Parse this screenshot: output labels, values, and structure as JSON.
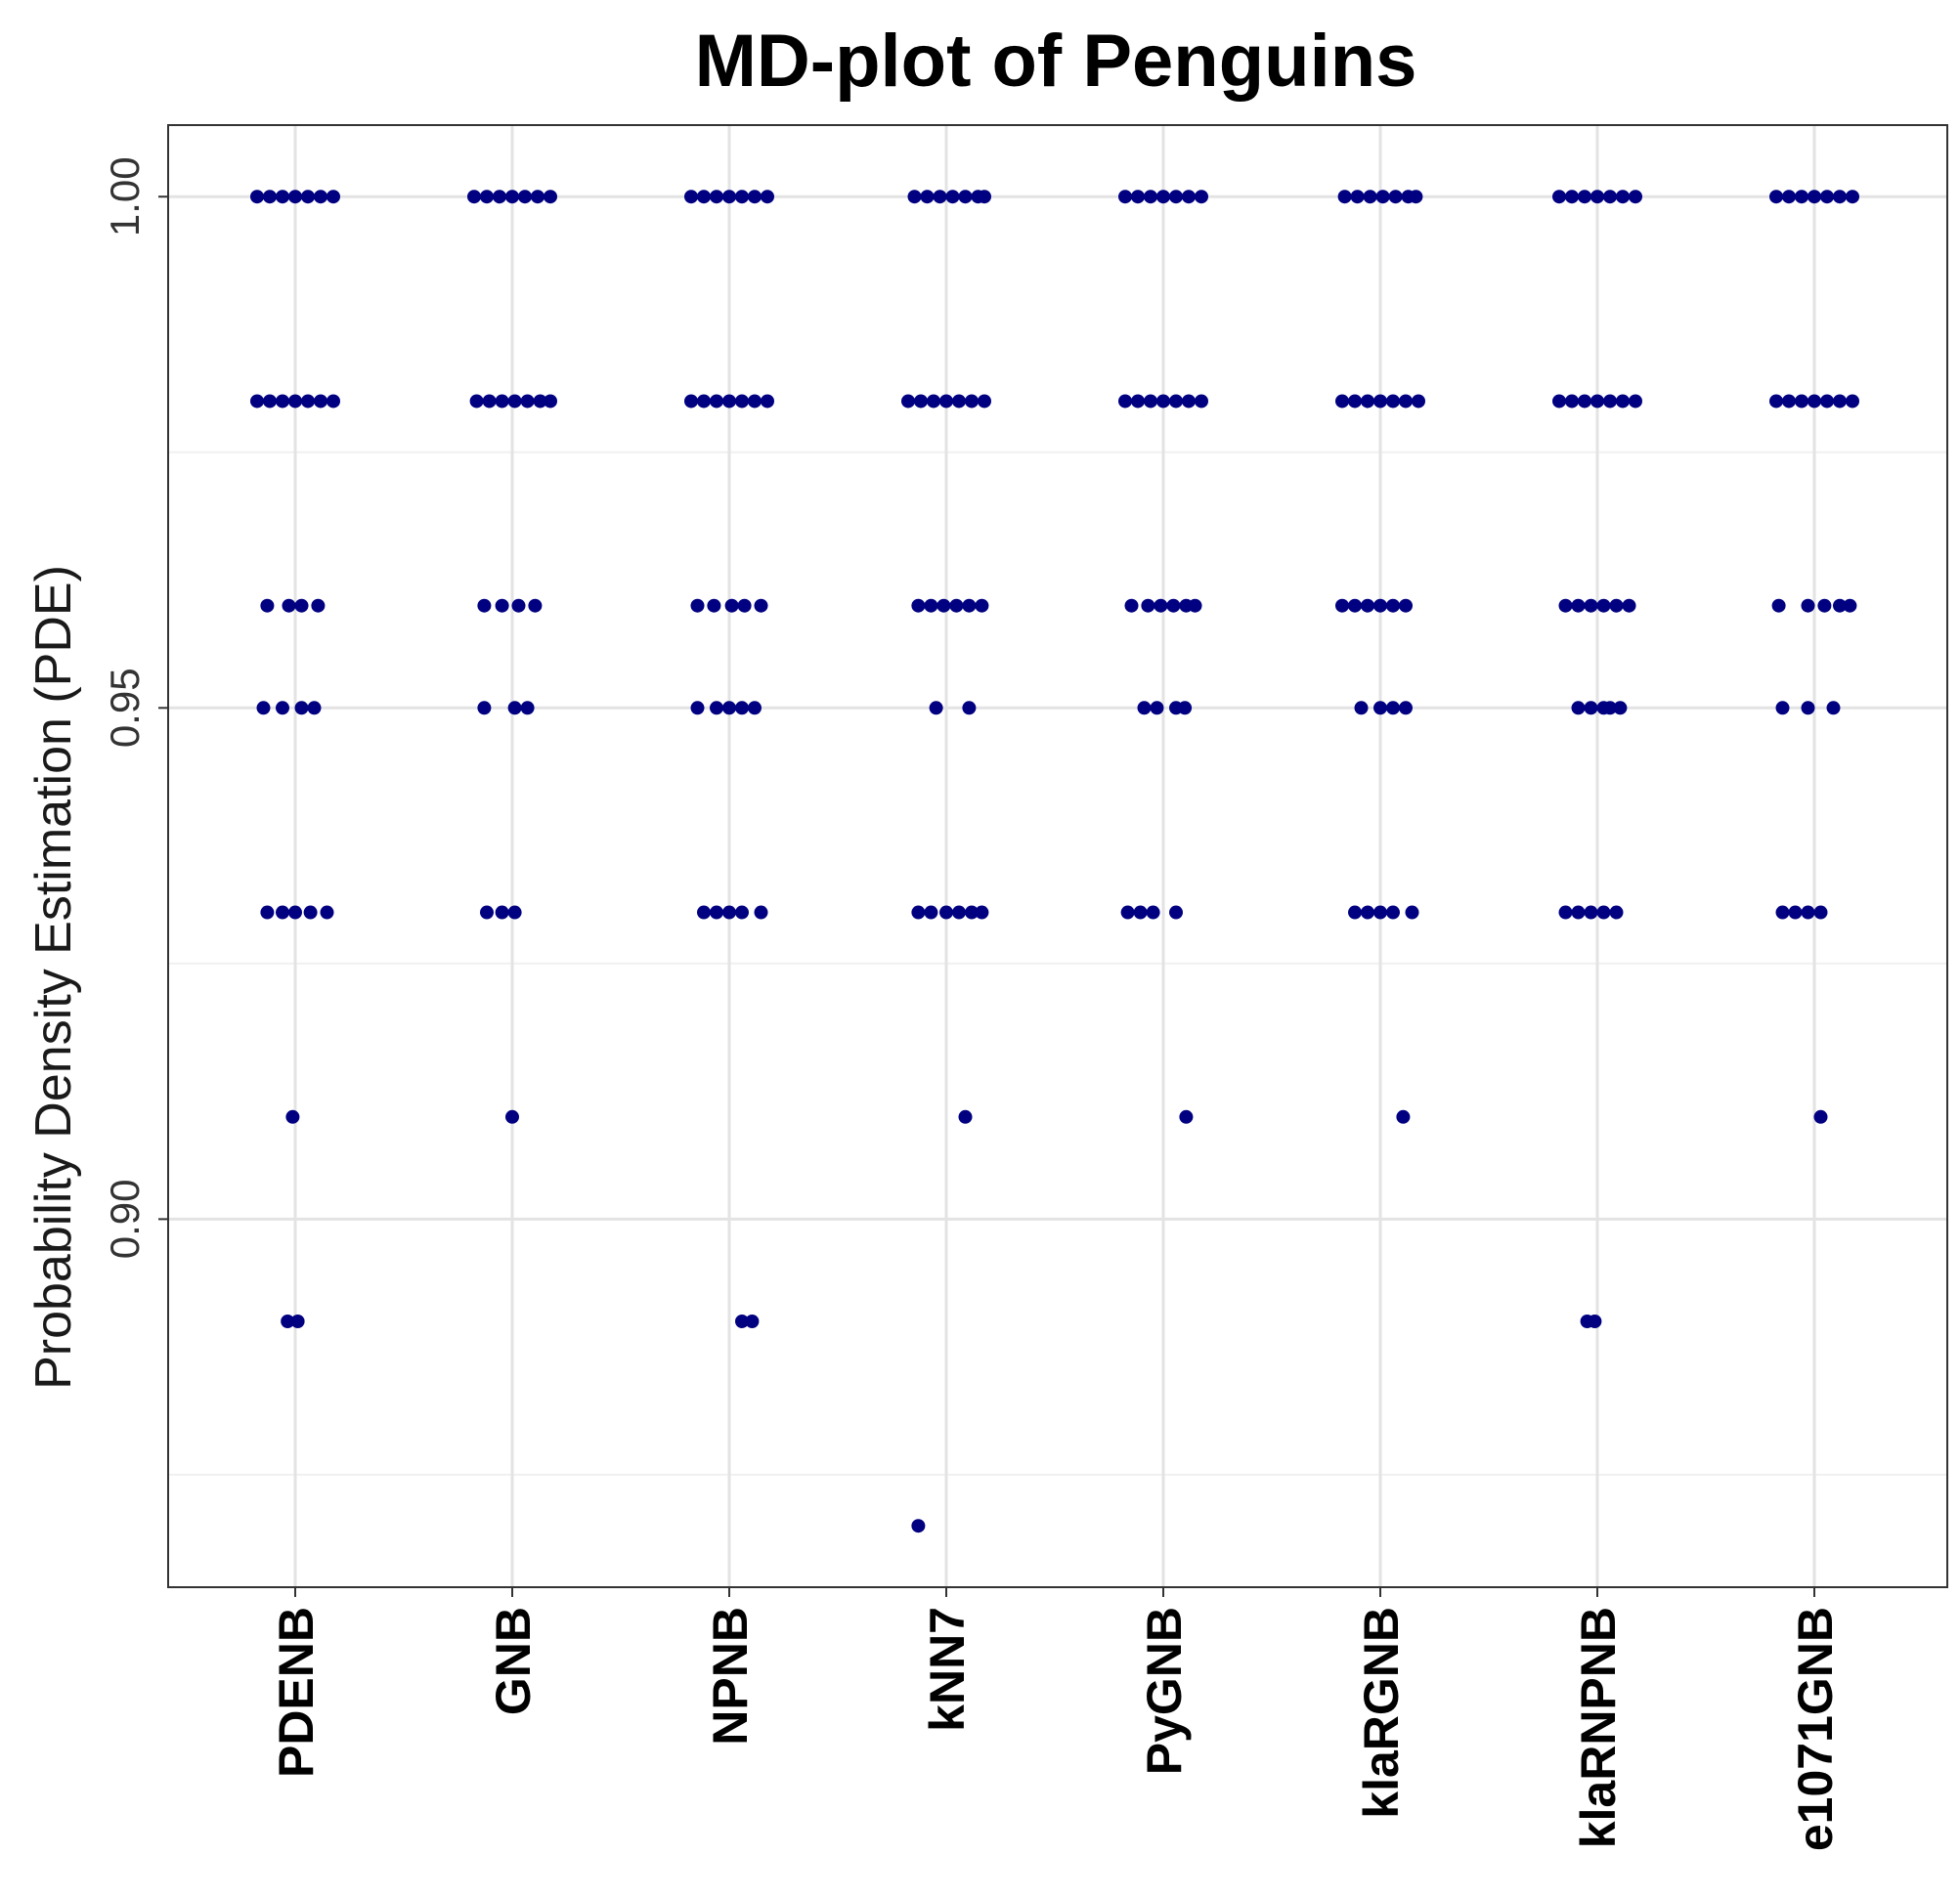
{
  "chart_data": {
    "type": "scatter",
    "title": "MD-plot of Penguins",
    "xlabel": "",
    "ylabel": "Probability Density Estimation (PDE)",
    "ylim": [
      0.864,
      1.007
    ],
    "yticks": [
      "0.90",
      "0.95",
      "1.00"
    ],
    "y_minor_gridlines": [
      0.875,
      0.925,
      0.975
    ],
    "grid": true,
    "legend": "none",
    "point_color": "#000080",
    "categories": [
      "PDENB",
      "GNB",
      "NPNB",
      "kNN7",
      "PyGNB",
      "klaRGNB",
      "klaRNPNB",
      "e1071GNB"
    ],
    "series": [
      {
        "values": [
          [
            1.0,
            -0.3
          ],
          [
            1.0,
            -0.2
          ],
          [
            1.0,
            -0.1
          ],
          [
            1.0,
            0.0
          ],
          [
            1.0,
            0.1
          ],
          [
            1.0,
            0.2
          ],
          [
            1.0,
            0.3
          ],
          [
            0.98,
            -0.3
          ],
          [
            0.98,
            -0.2
          ],
          [
            0.98,
            -0.1
          ],
          [
            0.98,
            0.0
          ],
          [
            0.98,
            0.1
          ],
          [
            0.98,
            0.2
          ],
          [
            0.98,
            0.3
          ],
          [
            0.96,
            -0.22
          ],
          [
            0.96,
            -0.05
          ],
          [
            0.96,
            0.05
          ],
          [
            0.96,
            0.18
          ],
          [
            0.95,
            -0.25
          ],
          [
            0.95,
            -0.1
          ],
          [
            0.95,
            0.05
          ],
          [
            0.95,
            0.15
          ],
          [
            0.93,
            -0.22
          ],
          [
            0.93,
            -0.1
          ],
          [
            0.93,
            0.0
          ],
          [
            0.93,
            0.12
          ],
          [
            0.93,
            0.25
          ],
          [
            0.91,
            -0.02
          ],
          [
            0.89,
            -0.06
          ],
          [
            0.89,
            0.02
          ]
        ]
      },
      {
        "values": [
          [
            1.0,
            -0.3
          ],
          [
            1.0,
            -0.2
          ],
          [
            1.0,
            -0.1
          ],
          [
            1.0,
            0.0
          ],
          [
            1.0,
            0.1
          ],
          [
            1.0,
            0.2
          ],
          [
            1.0,
            0.3
          ],
          [
            0.98,
            -0.28
          ],
          [
            0.98,
            -0.18
          ],
          [
            0.98,
            -0.08
          ],
          [
            0.98,
            0.02
          ],
          [
            0.98,
            0.12
          ],
          [
            0.98,
            0.22
          ],
          [
            0.98,
            0.3
          ],
          [
            0.96,
            -0.22
          ],
          [
            0.96,
            -0.08
          ],
          [
            0.96,
            0.05
          ],
          [
            0.96,
            0.18
          ],
          [
            0.95,
            -0.22
          ],
          [
            0.95,
            0.02
          ],
          [
            0.95,
            0.12
          ],
          [
            0.93,
            -0.2
          ],
          [
            0.93,
            -0.08
          ],
          [
            0.93,
            0.02
          ],
          [
            0.91,
            0.0
          ]
        ]
      },
      {
        "values": [
          [
            1.0,
            -0.3
          ],
          [
            1.0,
            -0.2
          ],
          [
            1.0,
            -0.1
          ],
          [
            1.0,
            0.0
          ],
          [
            1.0,
            0.1
          ],
          [
            1.0,
            0.2
          ],
          [
            1.0,
            0.3
          ],
          [
            0.98,
            -0.3
          ],
          [
            0.98,
            -0.2
          ],
          [
            0.98,
            -0.1
          ],
          [
            0.98,
            0.0
          ],
          [
            0.98,
            0.1
          ],
          [
            0.98,
            0.2
          ],
          [
            0.98,
            0.3
          ],
          [
            0.96,
            -0.25
          ],
          [
            0.96,
            -0.12
          ],
          [
            0.96,
            0.02
          ],
          [
            0.96,
            0.12
          ],
          [
            0.96,
            0.25
          ],
          [
            0.95,
            -0.25
          ],
          [
            0.95,
            -0.1
          ],
          [
            0.95,
            0.0
          ],
          [
            0.95,
            0.1
          ],
          [
            0.95,
            0.2
          ],
          [
            0.93,
            -0.2
          ],
          [
            0.93,
            -0.1
          ],
          [
            0.93,
            0.0
          ],
          [
            0.93,
            0.1
          ],
          [
            0.93,
            0.25
          ],
          [
            0.89,
            0.1
          ],
          [
            0.89,
            0.18
          ]
        ]
      },
      {
        "values": [
          [
            1.0,
            -0.25
          ],
          [
            1.0,
            -0.15
          ],
          [
            1.0,
            -0.05
          ],
          [
            1.0,
            0.05
          ],
          [
            1.0,
            0.15
          ],
          [
            1.0,
            0.25
          ],
          [
            1.0,
            0.3
          ],
          [
            0.98,
            -0.3
          ],
          [
            0.98,
            -0.2
          ],
          [
            0.98,
            -0.1
          ],
          [
            0.98,
            0.0
          ],
          [
            0.98,
            0.1
          ],
          [
            0.98,
            0.2
          ],
          [
            0.98,
            0.3
          ],
          [
            0.96,
            -0.22
          ],
          [
            0.96,
            -0.12
          ],
          [
            0.96,
            -0.02
          ],
          [
            0.96,
            0.08
          ],
          [
            0.96,
            0.18
          ],
          [
            0.96,
            0.28
          ],
          [
            0.95,
            -0.08
          ],
          [
            0.95,
            0.18
          ],
          [
            0.93,
            -0.22
          ],
          [
            0.93,
            -0.12
          ],
          [
            0.93,
            0.0
          ],
          [
            0.93,
            0.1
          ],
          [
            0.93,
            0.2
          ],
          [
            0.93,
            0.28
          ],
          [
            0.91,
            0.15
          ],
          [
            0.87,
            -0.22
          ]
        ]
      },
      {
        "values": [
          [
            1.0,
            -0.3
          ],
          [
            1.0,
            -0.2
          ],
          [
            1.0,
            -0.1
          ],
          [
            1.0,
            0.0
          ],
          [
            1.0,
            0.1
          ],
          [
            1.0,
            0.2
          ],
          [
            1.0,
            0.3
          ],
          [
            0.98,
            -0.3
          ],
          [
            0.98,
            -0.2
          ],
          [
            0.98,
            -0.1
          ],
          [
            0.98,
            0.0
          ],
          [
            0.98,
            0.1
          ],
          [
            0.98,
            0.2
          ],
          [
            0.98,
            0.3
          ],
          [
            0.96,
            -0.25
          ],
          [
            0.96,
            -0.12
          ],
          [
            0.96,
            -0.02
          ],
          [
            0.96,
            0.08
          ],
          [
            0.96,
            0.18
          ],
          [
            0.96,
            0.25
          ],
          [
            0.95,
            -0.15
          ],
          [
            0.95,
            -0.05
          ],
          [
            0.95,
            0.1
          ],
          [
            0.95,
            0.17
          ],
          [
            0.93,
            -0.28
          ],
          [
            0.93,
            -0.18
          ],
          [
            0.93,
            -0.08
          ],
          [
            0.93,
            0.1
          ],
          [
            0.91,
            0.18
          ]
        ]
      },
      {
        "values": [
          [
            1.0,
            -0.28
          ],
          [
            1.0,
            -0.18
          ],
          [
            1.0,
            -0.08
          ],
          [
            1.0,
            0.02
          ],
          [
            1.0,
            0.12
          ],
          [
            1.0,
            0.22
          ],
          [
            1.0,
            0.28
          ],
          [
            0.98,
            -0.3
          ],
          [
            0.98,
            -0.2
          ],
          [
            0.98,
            -0.1
          ],
          [
            0.98,
            0.0
          ],
          [
            0.98,
            0.1
          ],
          [
            0.98,
            0.2
          ],
          [
            0.98,
            0.3
          ],
          [
            0.96,
            -0.3
          ],
          [
            0.96,
            -0.2
          ],
          [
            0.96,
            -0.1
          ],
          [
            0.96,
            0.0
          ],
          [
            0.96,
            0.1
          ],
          [
            0.96,
            0.2
          ],
          [
            0.95,
            -0.15
          ],
          [
            0.95,
            0.0
          ],
          [
            0.95,
            0.1
          ],
          [
            0.95,
            0.2
          ],
          [
            0.93,
            -0.2
          ],
          [
            0.93,
            -0.1
          ],
          [
            0.93,
            0.0
          ],
          [
            0.93,
            0.1
          ],
          [
            0.93,
            0.25
          ],
          [
            0.91,
            0.18
          ]
        ]
      },
      {
        "values": [
          [
            1.0,
            -0.3
          ],
          [
            1.0,
            -0.2
          ],
          [
            1.0,
            -0.1
          ],
          [
            1.0,
            0.0
          ],
          [
            1.0,
            0.1
          ],
          [
            1.0,
            0.2
          ],
          [
            1.0,
            0.3
          ],
          [
            0.98,
            -0.3
          ],
          [
            0.98,
            -0.2
          ],
          [
            0.98,
            -0.1
          ],
          [
            0.98,
            0.0
          ],
          [
            0.98,
            0.1
          ],
          [
            0.98,
            0.2
          ],
          [
            0.98,
            0.3
          ],
          [
            0.96,
            -0.25
          ],
          [
            0.96,
            -0.15
          ],
          [
            0.96,
            -0.05
          ],
          [
            0.96,
            0.05
          ],
          [
            0.96,
            0.15
          ],
          [
            0.96,
            0.25
          ],
          [
            0.95,
            -0.15
          ],
          [
            0.95,
            -0.05
          ],
          [
            0.95,
            0.05
          ],
          [
            0.95,
            0.1
          ],
          [
            0.95,
            0.18
          ],
          [
            0.93,
            -0.25
          ],
          [
            0.93,
            -0.15
          ],
          [
            0.93,
            -0.05
          ],
          [
            0.93,
            0.05
          ],
          [
            0.93,
            0.15
          ],
          [
            0.89,
            -0.08
          ],
          [
            0.89,
            -0.02
          ]
        ]
      },
      {
        "values": [
          [
            1.0,
            -0.3
          ],
          [
            1.0,
            -0.2
          ],
          [
            1.0,
            -0.1
          ],
          [
            1.0,
            0.0
          ],
          [
            1.0,
            0.1
          ],
          [
            1.0,
            0.2
          ],
          [
            1.0,
            0.3
          ],
          [
            0.98,
            -0.3
          ],
          [
            0.98,
            -0.2
          ],
          [
            0.98,
            -0.1
          ],
          [
            0.98,
            0.0
          ],
          [
            0.98,
            0.1
          ],
          [
            0.98,
            0.2
          ],
          [
            0.98,
            0.3
          ],
          [
            0.96,
            -0.28
          ],
          [
            0.96,
            -0.05
          ],
          [
            0.96,
            0.08
          ],
          [
            0.96,
            0.2
          ],
          [
            0.96,
            0.28
          ],
          [
            0.95,
            -0.25
          ],
          [
            0.95,
            -0.05
          ],
          [
            0.95,
            0.15
          ],
          [
            0.93,
            -0.25
          ],
          [
            0.93,
            -0.15
          ],
          [
            0.93,
            -0.05
          ],
          [
            0.93,
            0.05
          ],
          [
            0.91,
            0.05
          ]
        ]
      }
    ]
  }
}
